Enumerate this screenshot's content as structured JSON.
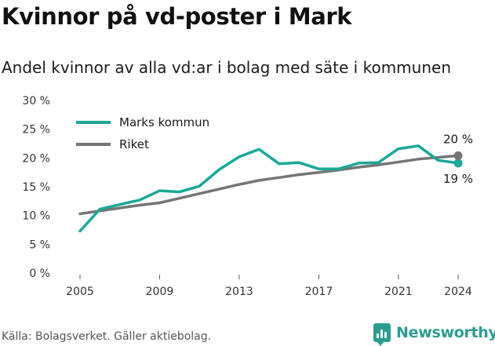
{
  "title": "Kvinnor på vd-poster i Mark",
  "subtitle": "Andel kvinnor av alla vd:ar i bolag med säte i kommunen",
  "source": "Källa: Bolagsverket. Gäller aktiebolag.",
  "brand": {
    "name": "Newsworthy",
    "icon": "newsworthy-logo-icon",
    "color": "#2a9d8f"
  },
  "chart_data": {
    "type": "line",
    "title": "Andel kvinnor av alla vd:ar i bolag med säte i kommunen",
    "xlabel": "",
    "ylabel": "",
    "xlim": [
      2005,
      2024
    ],
    "ylim": [
      0,
      30
    ],
    "x_ticks": [
      2005,
      2009,
      2013,
      2017,
      2021,
      2024
    ],
    "y_ticks": [
      0,
      5,
      10,
      15,
      20,
      25,
      30
    ],
    "y_tick_labels": [
      "0 %",
      "5 %",
      "10 %",
      "15 %",
      "20 %",
      "25 %",
      "30 %"
    ],
    "grid": false,
    "legend_position": "top-left",
    "x": [
      2005,
      2006,
      2007,
      2008,
      2009,
      2010,
      2011,
      2012,
      2013,
      2014,
      2015,
      2016,
      2017,
      2018,
      2019,
      2020,
      2021,
      2022,
      2023,
      2024
    ],
    "series": [
      {
        "name": "Marks kommun",
        "color": "#1aa898",
        "values": [
          7.3,
          11.1,
          11.9,
          12.7,
          14.3,
          14.1,
          15.1,
          18.0,
          20.2,
          21.5,
          19.0,
          19.2,
          18.1,
          18.1,
          19.1,
          19.2,
          21.6,
          22.1,
          19.6,
          19.1
        ],
        "end_label": "19 %"
      },
      {
        "name": "Riket",
        "color": "#757575",
        "values": [
          10.3,
          10.8,
          11.3,
          11.8,
          12.2,
          13.0,
          13.8,
          14.6,
          15.4,
          16.1,
          16.6,
          17.1,
          17.5,
          17.9,
          18.4,
          18.8,
          19.3,
          19.8,
          20.1,
          20.4
        ],
        "end_label": "20 %"
      }
    ]
  }
}
